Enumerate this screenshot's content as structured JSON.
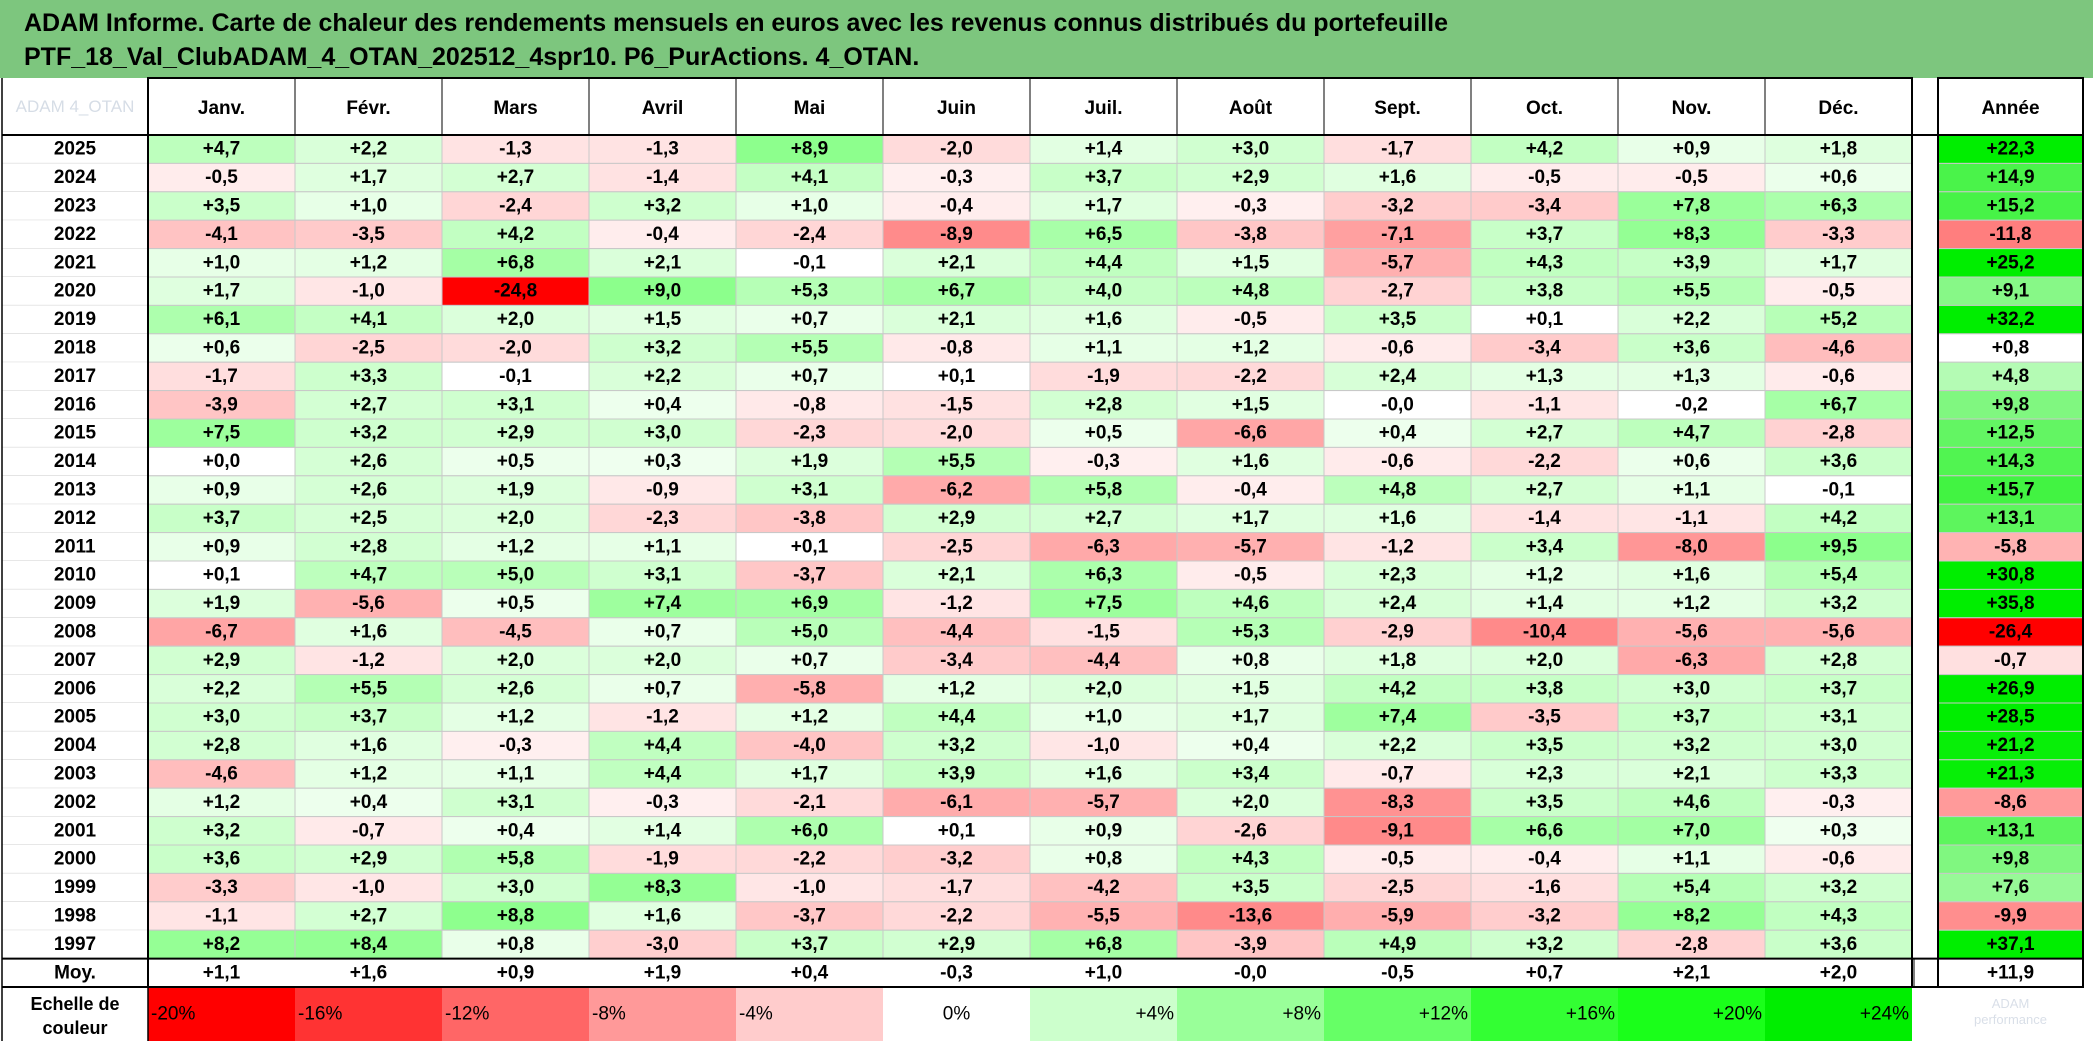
{
  "title": {
    "line1": "ADAM Informe. Carte de chaleur des rendements mensuels en euros avec les revenus connus distribués du portefeuille",
    "line2": "PTF_18_Val_ClubADAM_4_OTAN_202512_4spr10. P6_PurActions. 4_OTAN."
  },
  "chart_data": {
    "type": "heatmap",
    "corner_label": "ADAM 4_OTAN",
    "columns": [
      "Janv.",
      "Févr.",
      "Mars",
      "Avril",
      "Mai",
      "Juin",
      "Juil.",
      "Août",
      "Sept.",
      "Oct.",
      "Nov.",
      "Déc."
    ],
    "annual_label": "Année",
    "rows": [
      {
        "year": "2025",
        "values": [
          "+4,7",
          "+2,2",
          "-1,3",
          "-1,3",
          "+8,9",
          "-2,0",
          "+1,4",
          "+3,0",
          "-1,7",
          "+4,2",
          "+0,9",
          "+1,8"
        ],
        "annual": "+22,3"
      },
      {
        "year": "2024",
        "values": [
          "-0,5",
          "+1,7",
          "+2,7",
          "-1,4",
          "+4,1",
          "-0,3",
          "+3,7",
          "+2,9",
          "+1,6",
          "-0,5",
          "-0,5",
          "+0,6"
        ],
        "annual": "+14,9"
      },
      {
        "year": "2023",
        "values": [
          "+3,5",
          "+1,0",
          "-2,4",
          "+3,2",
          "+1,0",
          "-0,4",
          "+1,7",
          "-0,3",
          "-3,2",
          "-3,4",
          "+7,8",
          "+6,3"
        ],
        "annual": "+15,2"
      },
      {
        "year": "2022",
        "values": [
          "-4,1",
          "-3,5",
          "+4,2",
          "-0,4",
          "-2,4",
          "-8,9",
          "+6,5",
          "-3,8",
          "-7,1",
          "+3,7",
          "+8,3",
          "-3,3"
        ],
        "annual": "-11,8"
      },
      {
        "year": "2021",
        "values": [
          "+1,0",
          "+1,2",
          "+6,8",
          "+2,1",
          "-0,1",
          "+2,1",
          "+4,4",
          "+1,5",
          "-5,7",
          "+4,3",
          "+3,9",
          "+1,7"
        ],
        "annual": "+25,2"
      },
      {
        "year": "2020",
        "values": [
          "+1,7",
          "-1,0",
          "-24,8",
          "+9,0",
          "+5,3",
          "+6,7",
          "+4,0",
          "+4,8",
          "-2,7",
          "+3,8",
          "+5,5",
          "-0,5"
        ],
        "annual": "+9,1"
      },
      {
        "year": "2019",
        "values": [
          "+6,1",
          "+4,1",
          "+2,0",
          "+1,5",
          "+0,7",
          "+2,1",
          "+1,6",
          "-0,5",
          "+3,5",
          "+0,1",
          "+2,2",
          "+5,2"
        ],
        "annual": "+32,2"
      },
      {
        "year": "2018",
        "values": [
          "+0,6",
          "-2,5",
          "-2,0",
          "+3,2",
          "+5,5",
          "-0,8",
          "+1,1",
          "+1,2",
          "-0,6",
          "-3,4",
          "+3,6",
          "-4,6"
        ],
        "annual": "+0,8"
      },
      {
        "year": "2017",
        "values": [
          "-1,7",
          "+3,3",
          "-0,1",
          "+2,2",
          "+0,7",
          "+0,1",
          "-1,9",
          "-2,2",
          "+2,4",
          "+1,3",
          "+1,3",
          "-0,6"
        ],
        "annual": "+4,8"
      },
      {
        "year": "2016",
        "values": [
          "-3,9",
          "+2,7",
          "+3,1",
          "+0,4",
          "-0,8",
          "-1,5",
          "+2,8",
          "+1,5",
          "-0,0",
          "-1,1",
          "-0,2",
          "+6,7"
        ],
        "annual": "+9,8"
      },
      {
        "year": "2015",
        "values": [
          "+7,5",
          "+3,2",
          "+2,9",
          "+3,0",
          "-2,3",
          "-2,0",
          "+0,5",
          "-6,6",
          "+0,4",
          "+2,7",
          "+4,7",
          "-2,8"
        ],
        "annual": "+12,5"
      },
      {
        "year": "2014",
        "values": [
          "+0,0",
          "+2,6",
          "+0,5",
          "+0,3",
          "+1,9",
          "+5,5",
          "-0,3",
          "+1,6",
          "-0,6",
          "-2,2",
          "+0,6",
          "+3,6"
        ],
        "annual": "+14,3"
      },
      {
        "year": "2013",
        "values": [
          "+0,9",
          "+2,6",
          "+1,9",
          "-0,9",
          "+3,1",
          "-6,2",
          "+5,8",
          "-0,4",
          "+4,8",
          "+2,7",
          "+1,1",
          "-0,1"
        ],
        "annual": "+15,7"
      },
      {
        "year": "2012",
        "values": [
          "+3,7",
          "+2,5",
          "+2,0",
          "-2,3",
          "-3,8",
          "+2,9",
          "+2,7",
          "+1,7",
          "+1,6",
          "-1,4",
          "-1,1",
          "+4,2"
        ],
        "annual": "+13,1"
      },
      {
        "year": "2011",
        "values": [
          "+0,9",
          "+2,8",
          "+1,2",
          "+1,1",
          "+0,1",
          "-2,5",
          "-6,3",
          "-5,7",
          "-1,2",
          "+3,4",
          "-8,0",
          "+9,5"
        ],
        "annual": "-5,8"
      },
      {
        "year": "2010",
        "values": [
          "+0,1",
          "+4,7",
          "+5,0",
          "+3,1",
          "-3,7",
          "+2,1",
          "+6,3",
          "-0,5",
          "+2,3",
          "+1,2",
          "+1,6",
          "+5,4"
        ],
        "annual": "+30,8"
      },
      {
        "year": "2009",
        "values": [
          "+1,9",
          "-5,6",
          "+0,5",
          "+7,4",
          "+6,9",
          "-1,2",
          "+7,5",
          "+4,6",
          "+2,4",
          "+1,4",
          "+1,2",
          "+3,2"
        ],
        "annual": "+35,8"
      },
      {
        "year": "2008",
        "values": [
          "-6,7",
          "+1,6",
          "-4,5",
          "+0,7",
          "+5,0",
          "-4,4",
          "-1,5",
          "+5,3",
          "-2,9",
          "-10,4",
          "-5,6",
          "-5,6"
        ],
        "annual": "-26,4"
      },
      {
        "year": "2007",
        "values": [
          "+2,9",
          "-1,2",
          "+2,0",
          "+2,0",
          "+0,7",
          "-3,4",
          "-4,4",
          "+0,8",
          "+1,8",
          "+2,0",
          "-6,3",
          "+2,8"
        ],
        "annual": "-0,7"
      },
      {
        "year": "2006",
        "values": [
          "+2,2",
          "+5,5",
          "+2,6",
          "+0,7",
          "-5,8",
          "+1,2",
          "+2,0",
          "+1,5",
          "+4,2",
          "+3,8",
          "+3,0",
          "+3,7"
        ],
        "annual": "+26,9"
      },
      {
        "year": "2005",
        "values": [
          "+3,0",
          "+3,7",
          "+1,2",
          "-1,2",
          "+1,2",
          "+4,4",
          "+1,0",
          "+1,7",
          "+7,4",
          "-3,5",
          "+3,7",
          "+3,1"
        ],
        "annual": "+28,5"
      },
      {
        "year": "2004",
        "values": [
          "+2,8",
          "+1,6",
          "-0,3",
          "+4,4",
          "-4,0",
          "+3,2",
          "-1,0",
          "+0,4",
          "+2,2",
          "+3,5",
          "+3,2",
          "+3,0"
        ],
        "annual": "+21,2"
      },
      {
        "year": "2003",
        "values": [
          "-4,6",
          "+1,2",
          "+1,1",
          "+4,4",
          "+1,7",
          "+3,9",
          "+1,6",
          "+3,4",
          "-0,7",
          "+2,3",
          "+2,1",
          "+3,3"
        ],
        "annual": "+21,3"
      },
      {
        "year": "2002",
        "values": [
          "+1,2",
          "+0,4",
          "+3,1",
          "-0,3",
          "-2,1",
          "-6,1",
          "-5,7",
          "+2,0",
          "-8,3",
          "+3,5",
          "+4,6",
          "-0,3"
        ],
        "annual": "-8,6"
      },
      {
        "year": "2001",
        "values": [
          "+3,2",
          "-0,7",
          "+0,4",
          "+1,4",
          "+6,0",
          "+0,1",
          "+0,9",
          "-2,6",
          "-9,1",
          "+6,6",
          "+7,0",
          "+0,3"
        ],
        "annual": "+13,1"
      },
      {
        "year": "2000",
        "values": [
          "+3,6",
          "+2,9",
          "+5,8",
          "-1,9",
          "-2,2",
          "-3,2",
          "+0,8",
          "+4,3",
          "-0,5",
          "-0,4",
          "+1,1",
          "-0,6"
        ],
        "annual": "+9,8"
      },
      {
        "year": "1999",
        "values": [
          "-3,3",
          "-1,0",
          "+3,0",
          "+8,3",
          "-1,0",
          "-1,7",
          "-4,2",
          "+3,5",
          "-2,5",
          "-1,6",
          "+5,4",
          "+3,2"
        ],
        "annual": "+7,6"
      },
      {
        "year": "1998",
        "values": [
          "-1,1",
          "+2,7",
          "+8,8",
          "+1,6",
          "-3,7",
          "-2,2",
          "-5,5",
          "-13,6",
          "-5,9",
          "-3,2",
          "+8,2",
          "+4,3"
        ],
        "annual": "-9,9"
      },
      {
        "year": "1997",
        "values": [
          "+8,2",
          "+8,4",
          "+0,8",
          "-3,0",
          "+3,7",
          "+2,9",
          "+6,8",
          "-3,9",
          "+4,9",
          "+3,2",
          "-2,8",
          "+3,6"
        ],
        "annual": "+37,1"
      }
    ],
    "average": {
      "label": "Moy.",
      "values": [
        "+1,1",
        "+1,6",
        "+0,9",
        "+1,9",
        "+0,4",
        "-0,3",
        "+1,0",
        "-0,0",
        "-0,5",
        "+0,7",
        "+2,1",
        "+2,0"
      ],
      "annual": "+11,9"
    },
    "scale": {
      "label_line1": "Echelle de",
      "label_line2": "couleur",
      "steps": [
        {
          "label": "-20%",
          "value": -20,
          "color": "#ff0000"
        },
        {
          "label": "-16%",
          "value": -16,
          "color": "#ff3333"
        },
        {
          "label": "-12%",
          "value": -12,
          "color": "#ff6666"
        },
        {
          "label": "-8%",
          "value": -8,
          "color": "#ff9999"
        },
        {
          "label": "-4%",
          "value": -4,
          "color": "#ffcccc"
        },
        {
          "label": "0%",
          "value": 0,
          "color": "#ffffff"
        },
        {
          "label": "+4%",
          "value": 4,
          "color": "#ccffcc"
        },
        {
          "label": "+8%",
          "value": 8,
          "color": "#99ff99"
        },
        {
          "label": "+12%",
          "value": 12,
          "color": "#66ff66"
        },
        {
          "label": "+16%",
          "value": 16,
          "color": "#33ff33"
        },
        {
          "label": "+20%",
          "value": 20,
          "color": "#1aff1a"
        },
        {
          "label": "+24%",
          "value": 24,
          "color": "#00ee00"
        }
      ],
      "watermark_line1": "ADAM",
      "watermark_line2": "performance"
    }
  }
}
